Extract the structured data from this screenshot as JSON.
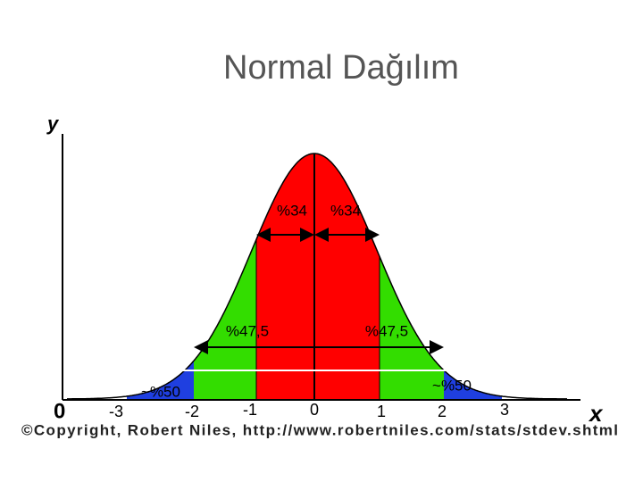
{
  "title": "Normal Dağılım",
  "axes": {
    "y_label": "y",
    "x_label": "x",
    "origin": "0"
  },
  "ticks": [
    "-3",
    "-2",
    "-1",
    "0",
    "1",
    "2",
    "3"
  ],
  "annotations": {
    "left_34": "%34",
    "right_34": "%34",
    "left_47": "%47,5",
    "right_47": "%47,5",
    "left_50": "~%50",
    "right_50": "~%50"
  },
  "copyright": "©Copyright, Robert Niles, http://www.robertniles.com/stats/stdev.shtml"
}
